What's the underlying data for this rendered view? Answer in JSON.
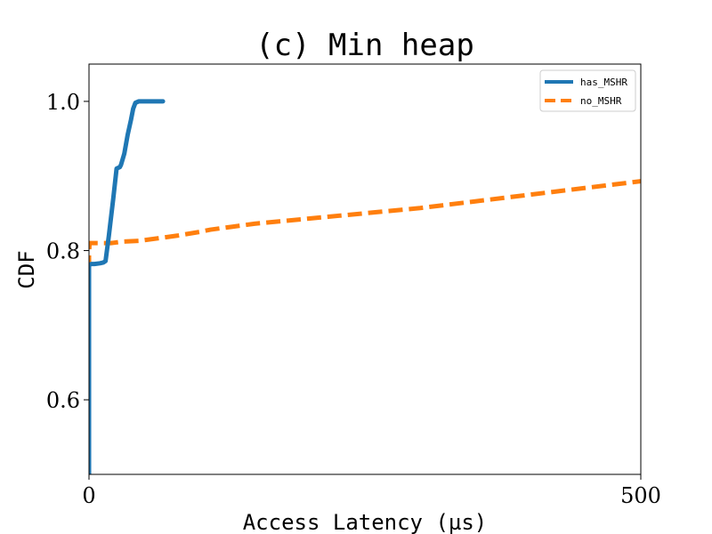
{
  "chart_data": {
    "type": "line",
    "title": "(c) Min heap",
    "xlabel": "Access Latency (µs)",
    "ylabel": "CDF",
    "xlim": [
      0,
      500
    ],
    "ylim": [
      0.5,
      1.05
    ],
    "xticks": [
      0,
      500
    ],
    "xtick_labels": [
      "0",
      "500"
    ],
    "yticks": [
      0.6,
      0.8,
      1.0
    ],
    "ytick_labels": [
      "0.6",
      "0.8",
      "1.0"
    ],
    "grid": false,
    "legend": {
      "location": "top-right"
    },
    "series": [
      {
        "name": "has_MSHR",
        "color": "#1f77b4",
        "style": "solid",
        "x": [
          0,
          0,
          0.5,
          2,
          5,
          10,
          13,
          15,
          18,
          22,
          25,
          28,
          29,
          32,
          35,
          38,
          40,
          42,
          45,
          50,
          60,
          67
        ],
        "y": [
          0.5,
          0.78,
          0.781,
          0.782,
          0.782,
          0.783,
          0.784,
          0.786,
          0.82,
          0.87,
          0.91,
          0.912,
          0.915,
          0.93,
          0.955,
          0.975,
          0.99,
          0.998,
          1.0,
          1.0,
          1.0,
          1.0
        ]
      },
      {
        "name": "no_MSHR",
        "color": "#ff7f0e",
        "style": "dashed",
        "x": [
          0,
          0,
          0.5,
          20,
          30,
          45,
          55,
          70,
          80,
          100,
          110,
          130,
          150,
          200,
          250,
          300,
          350,
          400,
          450,
          500
        ],
        "y": [
          0.5,
          0.795,
          0.81,
          0.81,
          0.812,
          0.813,
          0.815,
          0.818,
          0.82,
          0.825,
          0.828,
          0.832,
          0.836,
          0.843,
          0.85,
          0.857,
          0.866,
          0.875,
          0.884,
          0.893
        ]
      }
    ]
  }
}
